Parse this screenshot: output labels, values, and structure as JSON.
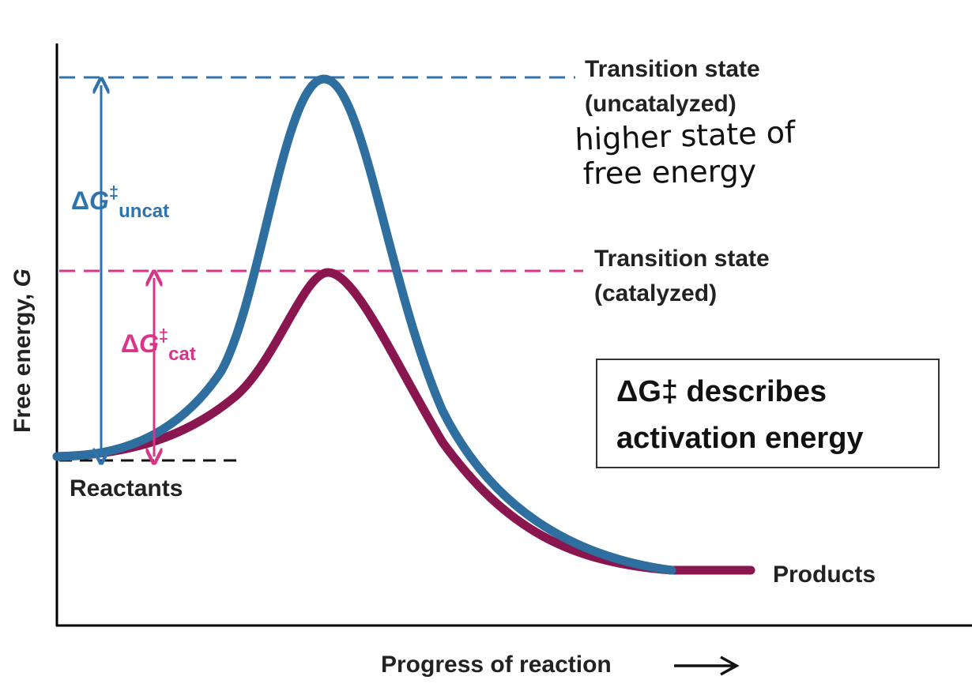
{
  "colors": {
    "uncat": "#2f73ad",
    "cat": "#d9338a",
    "cat_curve": "#8a1650",
    "uncat_curve": "#2e6f9f",
    "axis": "#000000",
    "reactant_line": "#111111"
  },
  "axes": {
    "y_label_main": "Free energy, ",
    "y_label_var": "G",
    "x_label": "Progress of reaction"
  },
  "labels": {
    "ts_uncat_1": "Transition state",
    "ts_uncat_2": "(uncatalyzed)",
    "ts_cat_1": "Transition state",
    "ts_cat_2": "(catalyzed)",
    "reactants": "Reactants",
    "products": "Products",
    "dg_uncat_sub": "uncat",
    "dg_cat_sub": "cat",
    "delta": "Δ",
    "g_var": "G",
    "dagger": "‡"
  },
  "handwritten": {
    "line1": "higher  state of",
    "line2": "free energy"
  },
  "note_box": {
    "line1": "ΔG‡ describes",
    "line2": "activation energy"
  }
}
